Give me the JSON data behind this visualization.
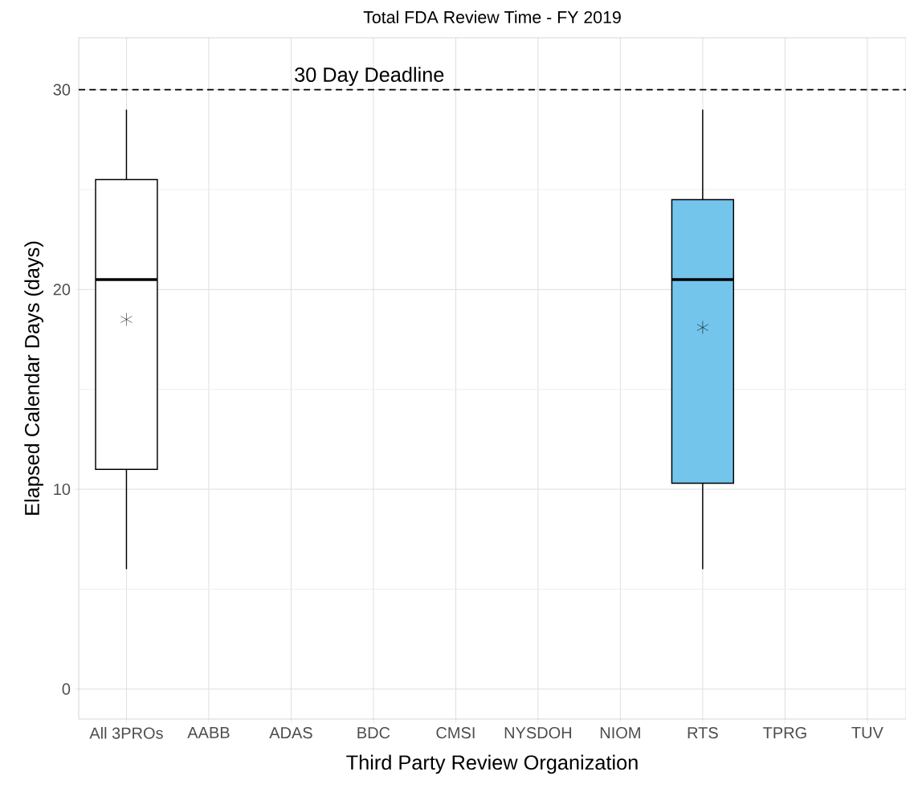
{
  "chart_data": {
    "type": "box",
    "title": "Total FDA Review Time - FY 2019",
    "xlabel": "Third Party Review Organization",
    "ylabel": "Elapsed Calendar Days (days)",
    "categories": [
      "All 3PROs",
      "AABB",
      "ADAS",
      "BDC",
      "CMSI",
      "NYSDOH",
      "NIOM",
      "RTS",
      "TPRG",
      "TUV"
    ],
    "boxes": [
      {
        "low": 6,
        "q1": 11,
        "median": 20.5,
        "q3": 25.5,
        "high": 29,
        "mean": 18.5
      },
      null,
      null,
      null,
      null,
      null,
      null,
      {
        "low": 6,
        "q1": 10.3,
        "median": 20.5,
        "q3": 24.5,
        "high": 29,
        "mean": 18.1
      },
      null,
      null
    ],
    "colors": [
      "#ffffff",
      null,
      null,
      null,
      null,
      null,
      null,
      "#74c5ec",
      null,
      null
    ],
    "ylim": [
      -1.5,
      32.6
    ],
    "yticks": [
      0,
      10,
      20,
      30
    ],
    "grid": true,
    "marker": "star",
    "ref_lines": [
      {
        "axis": "y",
        "value": 30,
        "label": "30 Day Deadline",
        "line_style": "dashed",
        "color": "#000000"
      }
    ]
  }
}
